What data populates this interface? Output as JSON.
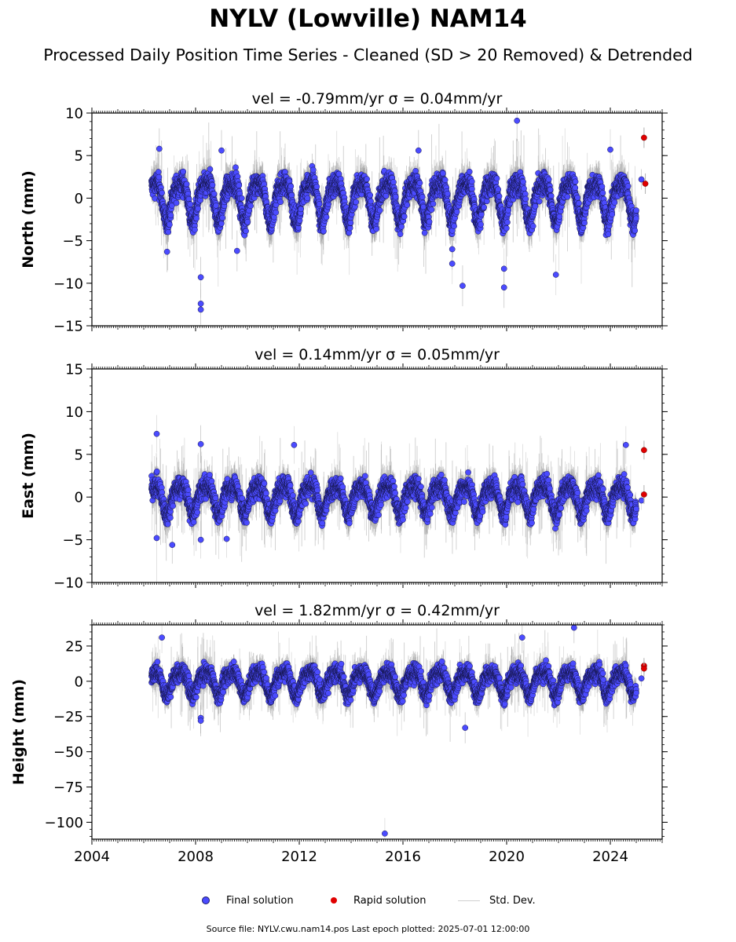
{
  "title": "NYLV (Lowville) NAM14",
  "subtitle": "Processed Daily Position Time Series - Cleaned (SD > 20 Removed) & Detrended",
  "footer": "Source file: NYLV.cwu.nam14.pos  Last epoch plotted: 2025-07-01 12:00:00",
  "legend": {
    "final": "Final solution",
    "rapid": "Rapid solution",
    "std": "Std. Dev."
  },
  "colors": {
    "final": "#4b4bff",
    "rapid": "#e00000",
    "std": "#bdbdbd"
  },
  "chart_data": [
    {
      "type": "scatter",
      "title": "vel = -0.79mm/yr   σ = 0.04mm/yr",
      "ylabel": "North (mm)",
      "xlim": [
        2004.0,
        2026.0
      ],
      "ylim": [
        -15,
        10
      ],
      "yticks": [
        -15,
        -10,
        -5,
        0,
        5,
        10
      ],
      "ytick_labels": [
        "−15",
        "−10",
        "−5",
        "0",
        "5",
        "10"
      ],
      "xticks": [
        2004,
        2008,
        2012,
        2016,
        2020,
        2024
      ],
      "start": 2006.3,
      "end": 2025.0,
      "amp": 2.2,
      "spread": 1.2,
      "outliers": [
        [
          2006.6,
          5.8
        ],
        [
          2006.9,
          -6.3
        ],
        [
          2008.2,
          -9.3
        ],
        [
          2008.2,
          -12.4
        ],
        [
          2008.2,
          -13.1
        ],
        [
          2009.0,
          5.6
        ],
        [
          2009.6,
          -6.2
        ],
        [
          2016.6,
          5.6
        ],
        [
          2017.9,
          -6.0
        ],
        [
          2017.9,
          -7.7
        ],
        [
          2018.3,
          -10.3
        ],
        [
          2019.9,
          -8.3
        ],
        [
          2019.9,
          -10.5
        ],
        [
          2020.4,
          9.1
        ],
        [
          2021.9,
          -9.0
        ],
        [
          2024.0,
          5.7
        ]
      ],
      "rapid": [
        [
          2025.3,
          7.1
        ],
        [
          2025.35,
          1.7
        ]
      ],
      "final_extra": [
        [
          2025.2,
          2.2
        ]
      ]
    },
    {
      "type": "scatter",
      "title": "vel = 0.14mm/yr   σ = 0.05mm/yr",
      "ylabel": "East (mm)",
      "xlim": [
        2004.0,
        2026.0
      ],
      "ylim": [
        -10,
        15
      ],
      "yticks": [
        -10,
        -5,
        0,
        5,
        10,
        15
      ],
      "ytick_labels": [
        "−10",
        "−5",
        "0",
        "5",
        "10",
        "15"
      ],
      "xticks": [
        2004,
        2008,
        2012,
        2016,
        2020,
        2024
      ],
      "start": 2006.3,
      "end": 2025.0,
      "amp": 1.6,
      "spread": 1.1,
      "outliers": [
        [
          2006.5,
          7.4
        ],
        [
          2006.5,
          -4.8
        ],
        [
          2007.1,
          -5.6
        ],
        [
          2008.2,
          6.2
        ],
        [
          2008.2,
          -5.0
        ],
        [
          2009.2,
          -4.9
        ],
        [
          2011.8,
          6.1
        ],
        [
          2024.6,
          6.1
        ]
      ],
      "rapid": [
        [
          2025.3,
          5.5
        ],
        [
          2025.3,
          0.3
        ]
      ],
      "final_extra": [
        [
          2025.2,
          -0.4
        ]
      ]
    },
    {
      "type": "scatter",
      "title": "vel = 1.82mm/yr   σ = 0.42mm/yr",
      "ylabel": "Height (mm)",
      "xlim": [
        2004.0,
        2026.0
      ],
      "ylim": [
        -112,
        40
      ],
      "yticks": [
        -100,
        -75,
        -50,
        -25,
        0,
        25
      ],
      "ytick_labels": [
        "−100",
        "−75",
        "−50",
        "−25",
        "0",
        "25"
      ],
      "xticks": [
        2004,
        2008,
        2012,
        2016,
        2020,
        2024
      ],
      "xtick_labels": [
        "2004",
        "2008",
        "2012",
        "2016",
        "2020",
        "2024"
      ],
      "start": 2006.3,
      "end": 2025.0,
      "amp": 8.0,
      "spread": 5.5,
      "outliers": [
        [
          2006.7,
          31
        ],
        [
          2008.2,
          -26
        ],
        [
          2008.2,
          -28
        ],
        [
          2015.3,
          -108
        ],
        [
          2018.4,
          -33
        ],
        [
          2020.6,
          31
        ],
        [
          2022.6,
          38
        ]
      ],
      "rapid": [
        [
          2025.3,
          11
        ],
        [
          2025.3,
          9
        ]
      ],
      "final_extra": [
        [
          2025.2,
          2
        ]
      ]
    }
  ]
}
